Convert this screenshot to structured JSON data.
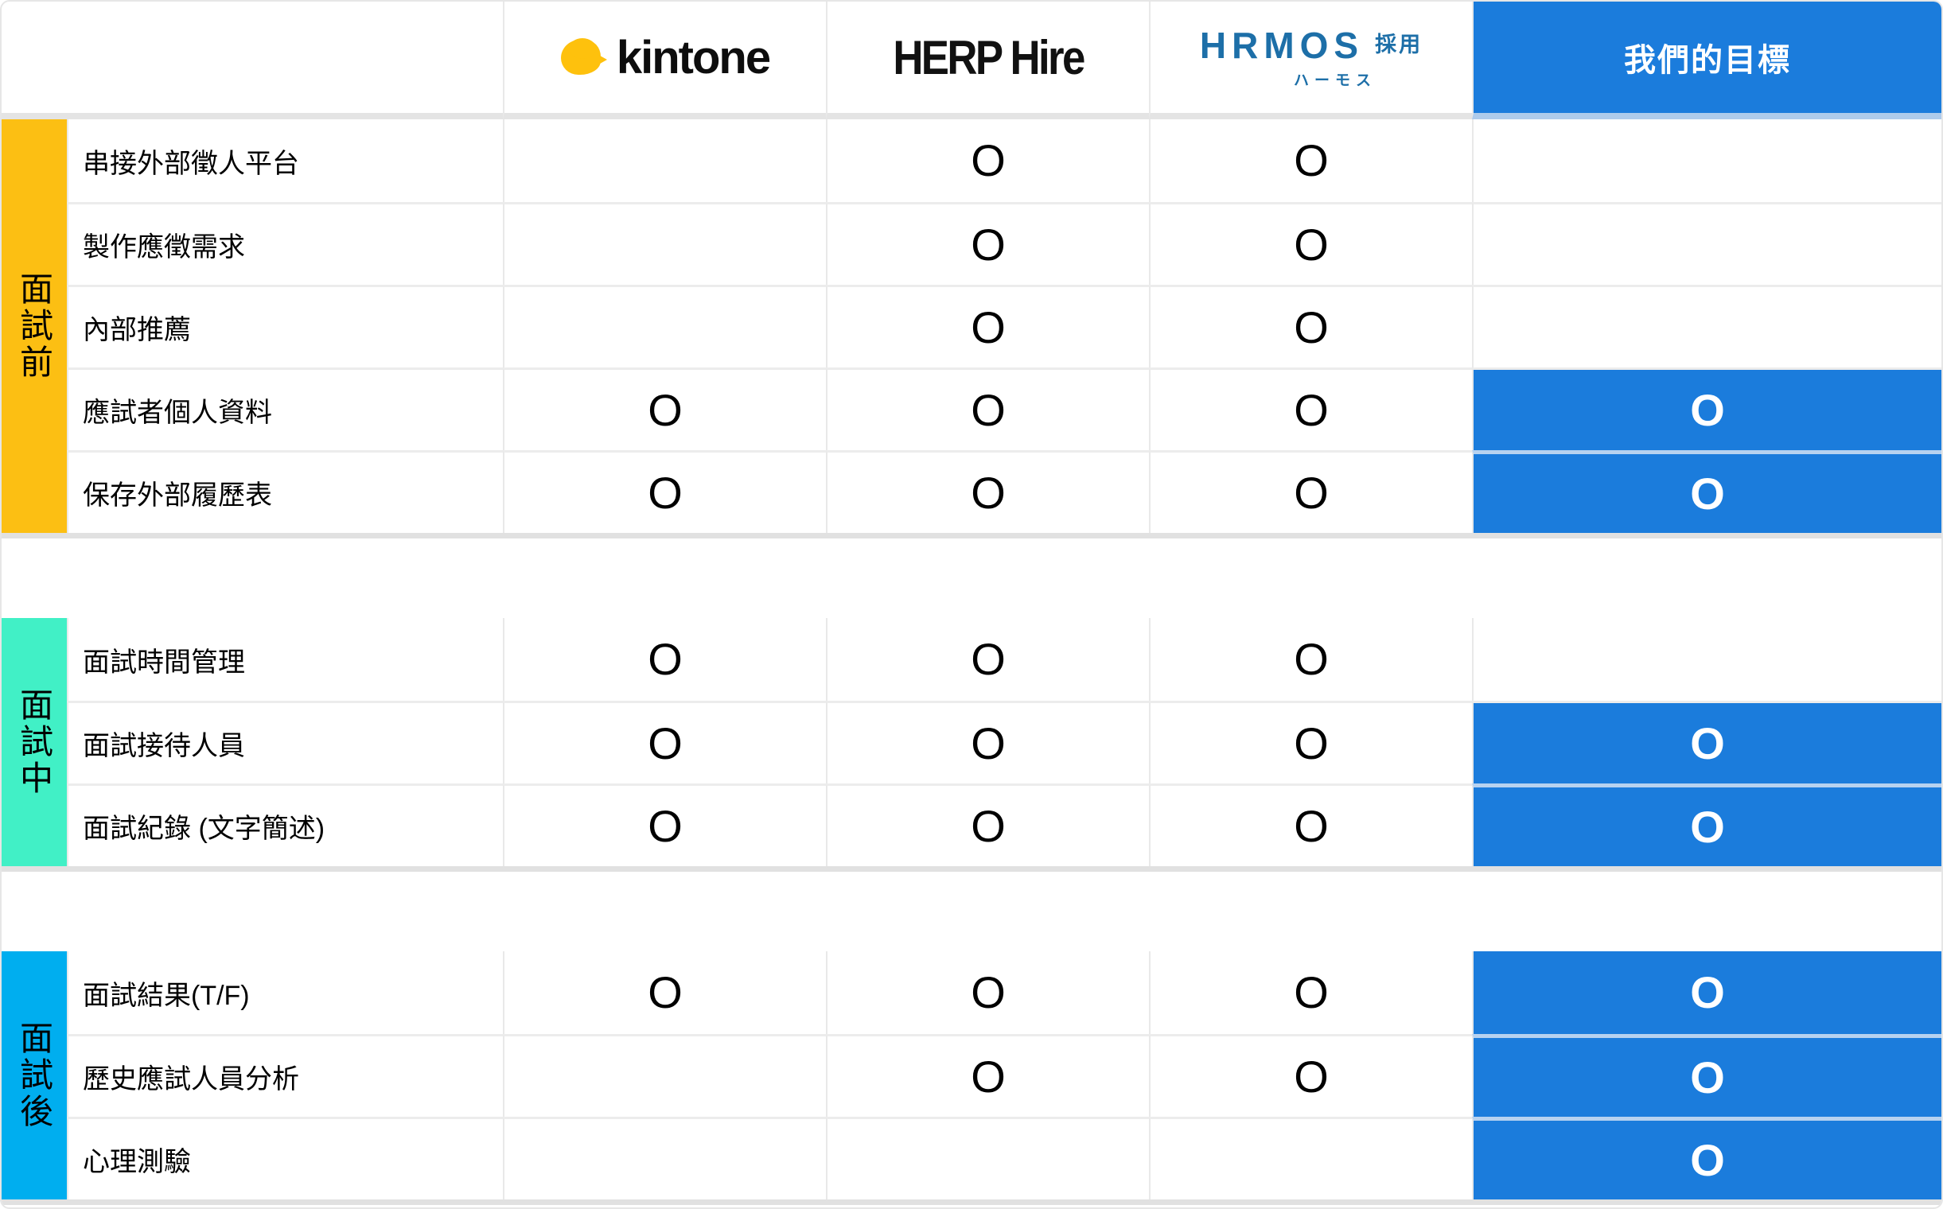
{
  "colors": {
    "goal_blue": "#1b7cdc",
    "hrmos_blue": "#1d6fa8",
    "kintone_yellow": "#fec10d",
    "section_before": "#fcbf13",
    "section_during": "#41f0c6",
    "section_after": "#00aeef"
  },
  "columns": {
    "kintone": {
      "label": "kintone"
    },
    "herp": {
      "label": "HERP Hire"
    },
    "hrmos": {
      "label": "HRMOS",
      "suffix": "採用",
      "subtitle": "ハーモス"
    },
    "goal": {
      "label": "我們的目標"
    }
  },
  "table": {
    "mark": "O",
    "sections": [
      {
        "id": "before",
        "label": "面試前",
        "color": "#fcbf13",
        "rows": [
          {
            "label": "串接外部徵人平台",
            "kintone": false,
            "herp": true,
            "hrmos": true,
            "goal": false
          },
          {
            "label": "製作應徵需求",
            "kintone": false,
            "herp": true,
            "hrmos": true,
            "goal": false
          },
          {
            "label": "內部推薦",
            "kintone": false,
            "herp": true,
            "hrmos": true,
            "goal": false
          },
          {
            "label": "應試者個人資料",
            "kintone": true,
            "herp": true,
            "hrmos": true,
            "goal": true
          },
          {
            "label": "保存外部履歷表",
            "kintone": true,
            "herp": true,
            "hrmos": true,
            "goal": true
          }
        ]
      },
      {
        "id": "during",
        "label": "面試中",
        "color": "#41f0c6",
        "rows": [
          {
            "label": "面試時間管理",
            "kintone": true,
            "herp": true,
            "hrmos": true,
            "goal": false
          },
          {
            "label": "面試接待人員",
            "kintone": true,
            "herp": true,
            "hrmos": true,
            "goal": true
          },
          {
            "label": "面試紀錄 (文字簡述)",
            "kintone": true,
            "herp": true,
            "hrmos": true,
            "goal": true
          }
        ]
      },
      {
        "id": "after",
        "label": "面試後",
        "color": "#00aeef",
        "rows": [
          {
            "label": "面試結果(T/F)",
            "kintone": true,
            "herp": true,
            "hrmos": true,
            "goal": true
          },
          {
            "label": "歷史應試人員分析",
            "kintone": false,
            "herp": true,
            "hrmos": true,
            "goal": true
          },
          {
            "label": "心理測驗",
            "kintone": false,
            "herp": false,
            "hrmos": false,
            "goal": true
          }
        ]
      }
    ]
  },
  "chart_data": {
    "type": "table",
    "title": "",
    "columns": [
      "",
      "kintone",
      "HERP Hire",
      "HRMOS 採用 ハーモス",
      "我們的目標"
    ],
    "row_groups": [
      {
        "group": "面試前",
        "rows": [
          [
            "串接外部徵人平台",
            "",
            "O",
            "O",
            ""
          ],
          [
            "製作應徵需求",
            "",
            "O",
            "O",
            ""
          ],
          [
            "內部推薦",
            "",
            "O",
            "O",
            ""
          ],
          [
            "應試者個人資料",
            "O",
            "O",
            "O",
            "O"
          ],
          [
            "保存外部履歷表",
            "O",
            "O",
            "O",
            "O"
          ]
        ]
      },
      {
        "group": "面試中",
        "rows": [
          [
            "面試時間管理",
            "O",
            "O",
            "O",
            ""
          ],
          [
            "面試接待人員",
            "O",
            "O",
            "O",
            "O"
          ],
          [
            "面試紀錄 (文字簡述)",
            "O",
            "O",
            "O",
            "O"
          ]
        ]
      },
      {
        "group": "面試後",
        "rows": [
          [
            "面試結果(T/F)",
            "O",
            "O",
            "O",
            "O"
          ],
          [
            "歷史應試人員分析",
            "",
            "O",
            "O",
            "O"
          ],
          [
            "心理測驗",
            "",
            "",
            "",
            "O"
          ]
        ]
      }
    ]
  }
}
